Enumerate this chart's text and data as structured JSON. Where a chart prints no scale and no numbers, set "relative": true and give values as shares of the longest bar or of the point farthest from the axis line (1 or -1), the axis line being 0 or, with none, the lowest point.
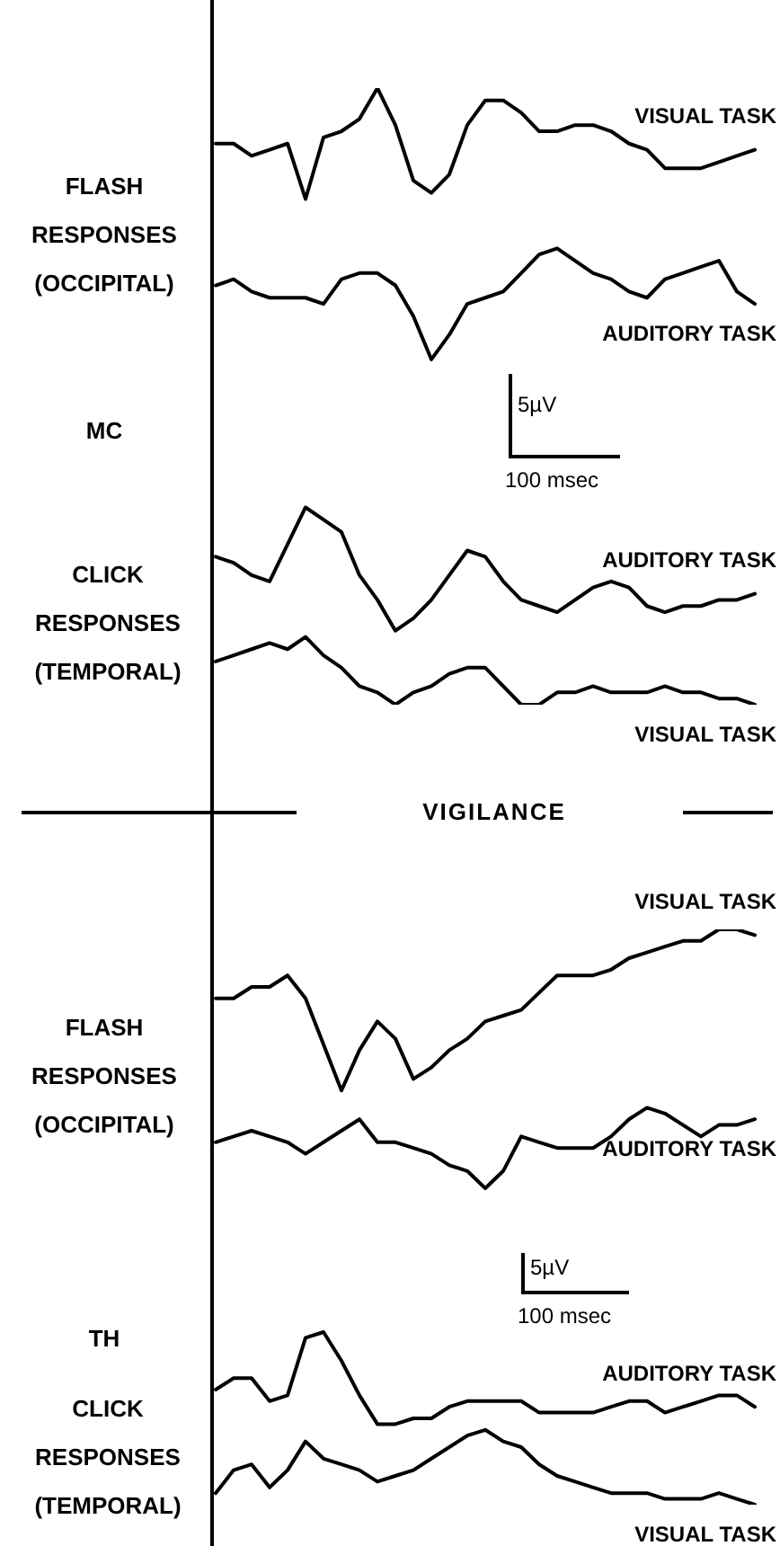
{
  "chart_data": [
    {
      "type": "line",
      "relative": true,
      "marker": "none",
      "categories": [
        null,
        null,
        null,
        null,
        null,
        null,
        null,
        null,
        null,
        null,
        null,
        null,
        null,
        null,
        null,
        null,
        null,
        null,
        null,
        null,
        null,
        null,
        null,
        null,
        null,
        null,
        null,
        null,
        null,
        null,
        null
      ],
      "series": [
        {
          "name": "VISUAL TASK",
          "color": "#000000",
          "values": [
            0.91,
            0.91,
            0.89,
            0.9,
            0.91,
            0.82,
            0.92,
            0.93,
            0.95,
            1.0,
            0.94,
            0.85,
            0.83,
            0.86,
            0.94,
            0.98,
            0.98,
            0.96,
            0.93,
            0.93,
            0.94,
            0.94,
            0.93,
            0.91,
            0.9,
            0.87,
            0.87,
            0.87,
            0.88,
            0.89,
            0.9
          ]
        },
        {
          "name": "AUDITORY TASK",
          "color": "#000000",
          "values": [
            0.68,
            0.69,
            0.67,
            0.66,
            0.66,
            0.66,
            0.65,
            0.69,
            0.7,
            0.7,
            0.68,
            0.63,
            0.56,
            0.6,
            0.65,
            0.66,
            0.67,
            0.7,
            0.73,
            0.74,
            0.72,
            0.7,
            0.69,
            0.67,
            0.66,
            0.69,
            0.7,
            0.71,
            0.72,
            0.67,
            0.65
          ]
        },
        {
          "name": "AUDITORY TASK",
          "color": "#000000",
          "values": [
            0.24,
            0.23,
            0.21,
            0.2,
            0.26,
            0.32,
            0.3,
            0.28,
            0.21,
            0.17,
            0.12,
            0.14,
            0.17,
            0.21,
            0.25,
            0.24,
            0.2,
            0.17,
            0.16,
            0.15,
            0.17,
            0.19,
            0.2,
            0.19,
            0.16,
            0.15,
            0.16,
            0.16,
            0.17,
            0.17,
            0.18
          ]
        },
        {
          "name": "VISUAL TASK",
          "color": "#000000",
          "values": [
            0.07,
            0.08,
            0.09,
            0.1,
            0.09,
            0.11,
            0.08,
            0.06,
            0.03,
            0.02,
            0.0,
            0.02,
            0.03,
            0.05,
            0.06,
            0.06,
            0.03,
            0.0,
            0.0,
            0.02,
            0.02,
            0.03,
            0.02,
            0.02,
            0.02,
            0.03,
            0.02,
            0.02,
            0.01,
            0.01,
            0.0
          ]
        }
      ],
      "annotations": [
        "FLASH RESPONSES (OCCIPITAL)",
        "MC",
        "CLICK RESPONSES (TEMPORAL)",
        "5µV",
        "100 msec"
      ]
    },
    {
      "type": "line",
      "relative": true,
      "marker": "none",
      "title": "VIGILANCE",
      "categories": [
        null,
        null,
        null,
        null,
        null,
        null,
        null,
        null,
        null,
        null,
        null,
        null,
        null,
        null,
        null,
        null,
        null,
        null,
        null,
        null,
        null,
        null,
        null,
        null,
        null,
        null,
        null,
        null,
        null,
        null,
        null
      ],
      "series": [
        {
          "name": "VISUAL TASK",
          "color": "#000000",
          "values": [
            0.88,
            0.88,
            0.9,
            0.9,
            0.92,
            0.88,
            0.8,
            0.72,
            0.79,
            0.84,
            0.81,
            0.74,
            0.76,
            0.79,
            0.81,
            0.84,
            0.85,
            0.86,
            0.89,
            0.92,
            0.92,
            0.92,
            0.93,
            0.95,
            0.96,
            0.97,
            0.98,
            0.98,
            1.0,
            1.0,
            0.99
          ]
        },
        {
          "name": "AUDITORY TASK",
          "color": "#000000",
          "values": [
            0.63,
            0.64,
            0.65,
            0.64,
            0.63,
            0.61,
            0.63,
            0.65,
            0.67,
            0.63,
            0.63,
            0.62,
            0.61,
            0.59,
            0.58,
            0.55,
            0.58,
            0.64,
            0.63,
            0.62,
            0.62,
            0.62,
            0.64,
            0.67,
            0.69,
            0.68,
            0.66,
            0.64,
            0.66,
            0.66,
            0.67
          ]
        },
        {
          "name": "AUDITORY TASK",
          "color": "#000000",
          "values": [
            0.2,
            0.22,
            0.22,
            0.18,
            0.19,
            0.29,
            0.3,
            0.25,
            0.19,
            0.14,
            0.14,
            0.15,
            0.15,
            0.17,
            0.18,
            0.18,
            0.18,
            0.18,
            0.16,
            0.16,
            0.16,
            0.16,
            0.17,
            0.18,
            0.18,
            0.16,
            0.17,
            0.18,
            0.19,
            0.19,
            0.17
          ]
        },
        {
          "name": "VISUAL TASK",
          "color": "#000000",
          "values": [
            0.02,
            0.06,
            0.07,
            0.03,
            0.06,
            0.11,
            0.08,
            0.07,
            0.06,
            0.04,
            0.05,
            0.06,
            0.08,
            0.1,
            0.12,
            0.13,
            0.11,
            0.1,
            0.07,
            0.05,
            0.04,
            0.03,
            0.02,
            0.02,
            0.02,
            0.01,
            0.01,
            0.01,
            0.02,
            0.01,
            0.0
          ]
        }
      ],
      "annotations": [
        "FLASH RESPONSES (OCCIPITAL)",
        "TH",
        "CLICK RESPONSES (TEMPORAL)",
        "5µV",
        "100 msec"
      ]
    }
  ]
}
